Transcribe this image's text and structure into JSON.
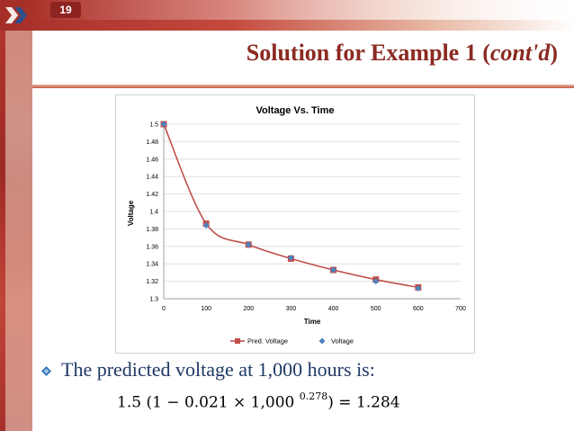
{
  "slide": {
    "page_number": "19",
    "title_main": "Solution for Example 1 (",
    "title_italic": "cont'd",
    "title_close": ")",
    "bullet_text": "The predicted voltage at 1,000 hours is:",
    "formula": {
      "lhs": "1.5",
      "open": "(1 − 0.021 × 1,000",
      "exponent": "0.278",
      "close": ")",
      "rhs": "= 1.284"
    }
  },
  "chart_data": {
    "type": "line",
    "title": "Voltage Vs. Time",
    "xlabel": "Time",
    "ylabel": "Voltage",
    "xlim": [
      0,
      700
    ],
    "ylim": [
      1.3,
      1.5
    ],
    "x_ticks": [
      "0",
      "100",
      "200",
      "300",
      "400",
      "500",
      "600",
      "700"
    ],
    "y_ticks": [
      "1.3",
      "1.32",
      "1.34",
      "1.36",
      "1.38",
      "1.4",
      "1.42",
      "1.44",
      "1.46",
      "1.48",
      "1.5"
    ],
    "grid": "horizontal",
    "legend_position": "bottom",
    "series": [
      {
        "name": "Pred. Voltage",
        "color": "#c0504d",
        "marker": "square",
        "x": [
          0,
          100,
          200,
          300,
          400,
          500,
          600
        ],
        "y": [
          1.5,
          1.386,
          1.362,
          1.346,
          1.333,
          1.322,
          1.313
        ]
      },
      {
        "name": "Voltage",
        "color": "#4f81bd",
        "marker": "diamond",
        "x": [
          0,
          100,
          200,
          300,
          400,
          500,
          600
        ],
        "y": [
          1.5,
          1.384,
          1.362,
          1.347,
          1.333,
          1.32,
          1.312
        ]
      }
    ]
  },
  "colors": {
    "title": "#8b2a22",
    "bullet_text": "#1f3864",
    "accent": "#c0504d"
  }
}
